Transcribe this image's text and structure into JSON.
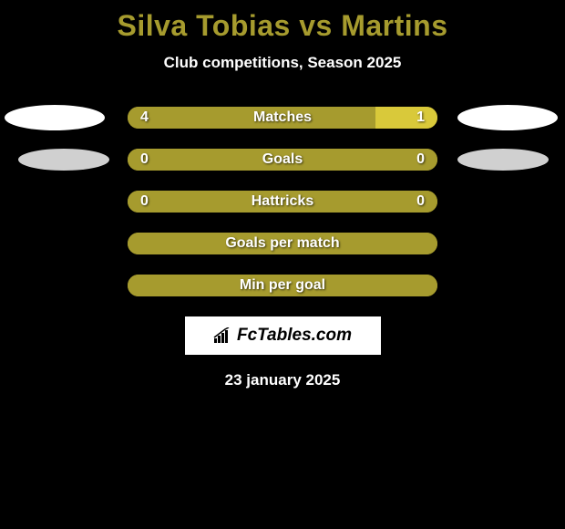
{
  "title": "Silva Tobias vs Martins",
  "subtitle": "Club competitions, Season 2025",
  "date": "23 january 2025",
  "logo": "FcTables.com",
  "colors": {
    "title": "#a69b2e",
    "bar_primary": "#a69b2e",
    "bar_secondary": "#d9c93a",
    "badge_left_row0": "#ffffff",
    "badge_right_row0": "#ffffff",
    "badge_left_row1": "#d0d0d0",
    "badge_right_row1": "#d0d0d0",
    "background": "#000000"
  },
  "rows": [
    {
      "label": "Matches",
      "left_value": "4",
      "right_value": "1",
      "left_pct": 80,
      "right_pct": 20,
      "left_color": "#a69b2e",
      "right_color": "#d9c93a",
      "show_left_badge": true,
      "show_right_badge": true,
      "badge_color": "#ffffff"
    },
    {
      "label": "Goals",
      "left_value": "0",
      "right_value": "0",
      "left_pct": 100,
      "right_pct": 0,
      "left_color": "#a69b2e",
      "right_color": "#d9c93a",
      "show_left_badge": true,
      "show_right_badge": true,
      "badge_color": "#d0d0d0"
    },
    {
      "label": "Hattricks",
      "left_value": "0",
      "right_value": "0",
      "left_pct": 100,
      "right_pct": 0,
      "left_color": "#a69b2e",
      "right_color": "#d9c93a",
      "show_left_badge": false,
      "show_right_badge": false
    },
    {
      "label": "Goals per match",
      "left_value": "",
      "right_value": "",
      "left_pct": 100,
      "right_pct": 0,
      "left_color": "#a69b2e",
      "right_color": "#d9c93a",
      "show_left_badge": false,
      "show_right_badge": false
    },
    {
      "label": "Min per goal",
      "left_value": "",
      "right_value": "",
      "left_pct": 100,
      "right_pct": 0,
      "left_color": "#a69b2e",
      "right_color": "#d9c93a",
      "show_left_badge": false,
      "show_right_badge": false
    }
  ]
}
